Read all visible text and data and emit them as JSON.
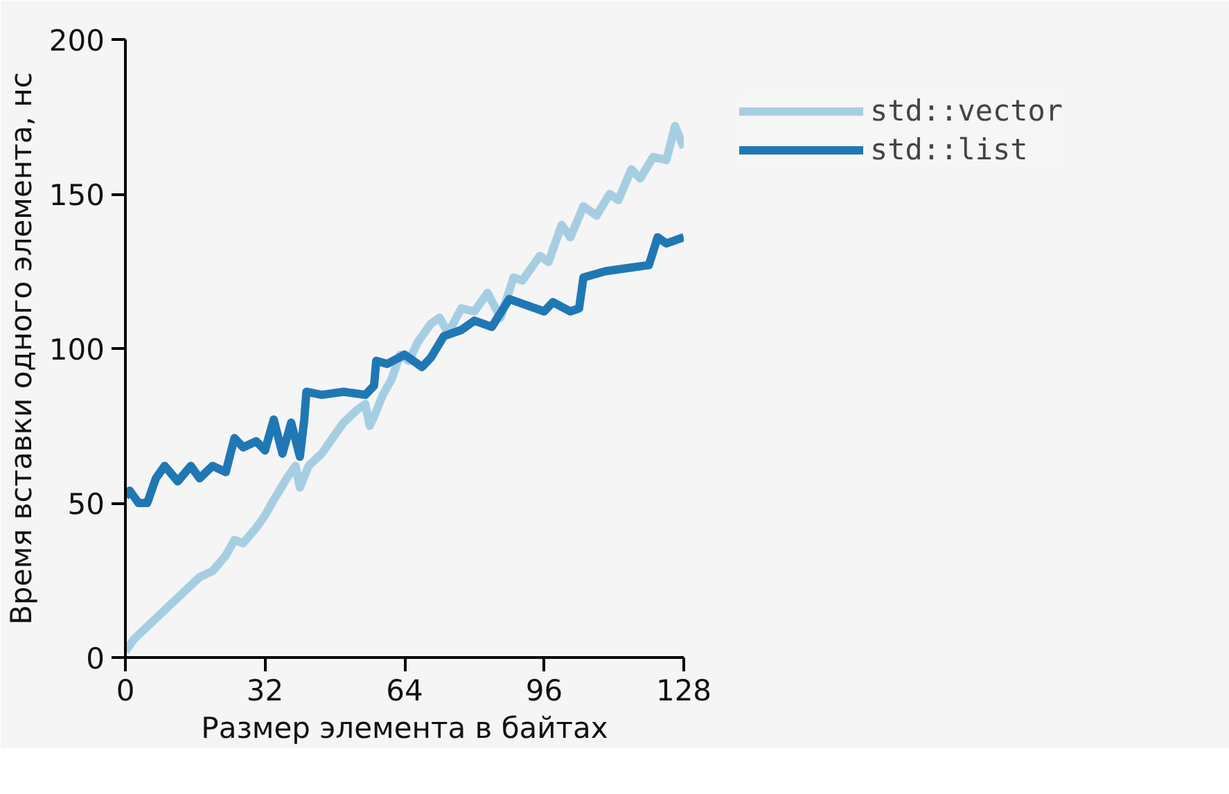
{
  "chart_data": {
    "type": "line",
    "xlabel": "Размер элемента в байтах",
    "ylabel": "Время вставки одного элемента, нс",
    "xlim": [
      0,
      128
    ],
    "xticks": [
      0,
      32,
      64,
      96,
      128
    ],
    "ylim": [
      0,
      200
    ],
    "yticks": [
      0,
      50,
      100,
      150,
      200
    ],
    "grid": false,
    "legend": "right",
    "marker": "none",
    "line_style": "solid",
    "series": [
      {
        "name": "std::vector",
        "color": "#a6cee3",
        "x": [
          0,
          2,
          5,
          8,
          11,
          14,
          17,
          20,
          23,
          25,
          27,
          30,
          32,
          34,
          37,
          39,
          40,
          42,
          45,
          47,
          50,
          53,
          55,
          56,
          57,
          59,
          61,
          63,
          65,
          67,
          70,
          72,
          74,
          77,
          80,
          83,
          86,
          89,
          91,
          95,
          97,
          100,
          102,
          105,
          108,
          111,
          113,
          116,
          118,
          121,
          124,
          126,
          128
        ],
        "values": [
          2,
          6,
          10,
          14,
          18,
          22,
          26,
          28,
          33,
          38,
          37,
          42,
          46,
          51,
          58,
          62,
          55,
          62,
          66,
          70,
          76,
          80,
          82,
          75,
          78,
          85,
          90,
          98,
          96,
          102,
          108,
          110,
          105,
          113,
          112,
          118,
          110,
          123,
          122,
          130,
          128,
          140,
          136,
          146,
          143,
          150,
          148,
          158,
          155,
          162,
          161,
          172,
          165
        ]
      },
      {
        "name": "std::list",
        "color": "#1f78b4",
        "x": [
          0,
          1,
          3,
          5,
          7,
          9,
          12,
          15,
          17,
          20,
          23,
          25,
          27,
          30,
          32,
          34,
          36,
          38,
          40,
          41,
          41.5,
          45,
          50,
          55,
          57,
          57.5,
          60,
          64,
          68,
          70,
          73,
          77,
          80,
          84,
          88,
          92,
          96,
          98,
          102,
          104,
          105,
          110,
          115,
          120,
          122,
          124,
          128
        ],
        "values": [
          52,
          54,
          50,
          50,
          58,
          62,
          57,
          62,
          58,
          62,
          60,
          71,
          68,
          70,
          67,
          77,
          66,
          76,
          65,
          77,
          86,
          85,
          86,
          85,
          88,
          96,
          95,
          98,
          94,
          97,
          104,
          106,
          109,
          107,
          116,
          114,
          112,
          115,
          112,
          113,
          123,
          125,
          126,
          127,
          136,
          134,
          136
        ]
      }
    ]
  }
}
